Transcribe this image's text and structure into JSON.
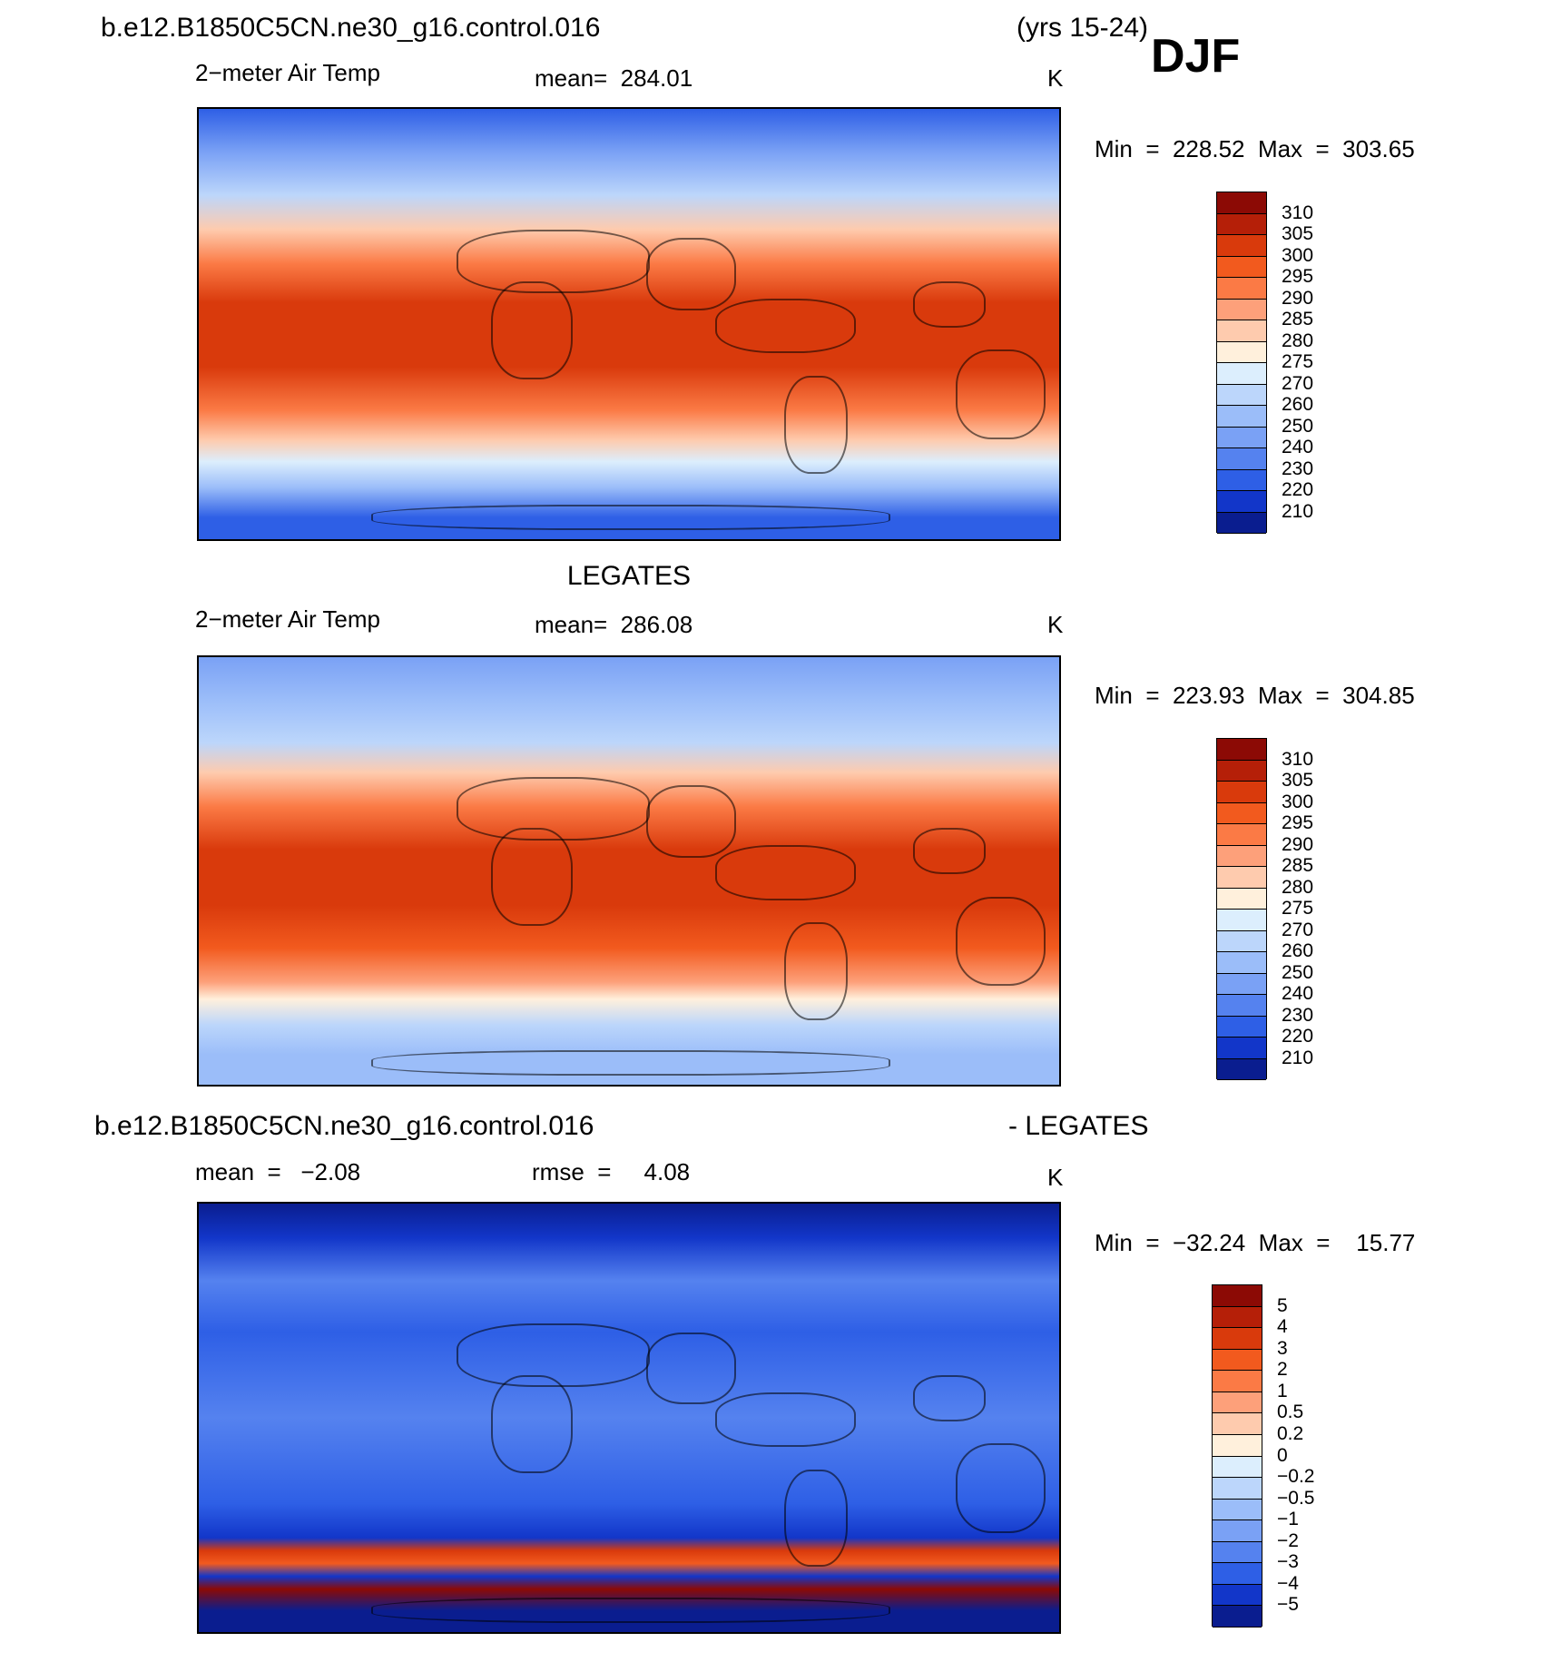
{
  "header": {
    "case": "b.e12.B1850C5CN.ne30_g16.control.016",
    "years": "(yrs 15-24)",
    "season": "DJF"
  },
  "panels": [
    {
      "variable": "2−meter Air Temp",
      "stat": "mean=  284.01",
      "units": "K",
      "minmax": "Min  =  228.52  Max  =  303.65",
      "colorbar": {
        "labels": [
          "310",
          "305",
          "300",
          "295",
          "290",
          "285",
          "280",
          "275",
          "270",
          "260",
          "250",
          "240",
          "230",
          "220",
          "210"
        ],
        "colors": [
          "#8c0a05",
          "#b51f08",
          "#d93a0c",
          "#f25a1e",
          "#fb7a45",
          "#fda07a",
          "#fecbae",
          "#fff0dc",
          "#dceefd",
          "#bcd6fb",
          "#9bbdf9",
          "#7aa1f5",
          "#5582ef",
          "#2e5fe6",
          "#1236c9",
          "#0a1d8f"
        ]
      }
    },
    {
      "title": "LEGATES",
      "variable": "2−meter Air Temp",
      "stat": "mean=  286.08",
      "units": "K",
      "minmax": "Min  =  223.93  Max  =  304.85",
      "colorbar": {
        "labels": [
          "310",
          "305",
          "300",
          "295",
          "290",
          "285",
          "280",
          "275",
          "270",
          "260",
          "250",
          "240",
          "230",
          "220",
          "210"
        ],
        "colors": [
          "#8c0a05",
          "#b51f08",
          "#d93a0c",
          "#f25a1e",
          "#fb7a45",
          "#fda07a",
          "#fecbae",
          "#fff0dc",
          "#dceefd",
          "#bcd6fb",
          "#9bbdf9",
          "#7aa1f5",
          "#5582ef",
          "#2e5fe6",
          "#1236c9",
          "#0a1d8f"
        ]
      }
    },
    {
      "title": "b.e12.B1850C5CN.ne30_g16.control.016",
      "title_right": "- LEGATES",
      "stat": "mean  =   −2.08",
      "stat2": "rmse  =     4.08",
      "units": "K",
      "minmax": "Min  =  −32.24  Max  =    15.77",
      "colorbar": {
        "labels": [
          "5",
          "4",
          "3",
          "2",
          "1",
          "0.5",
          "0.2",
          "0",
          "−0.2",
          "−0.5",
          "−1",
          "−2",
          "−3",
          "−4",
          "−5"
        ],
        "colors": [
          "#8c0a05",
          "#b51f08",
          "#d93a0c",
          "#f25a1e",
          "#fb7a45",
          "#fda07a",
          "#fecbae",
          "#fff0dc",
          "#dceefd",
          "#bcd6fb",
          "#9bbdf9",
          "#7aa1f5",
          "#5582ef",
          "#2e5fe6",
          "#1236c9",
          "#0a1d8f"
        ]
      }
    }
  ]
}
